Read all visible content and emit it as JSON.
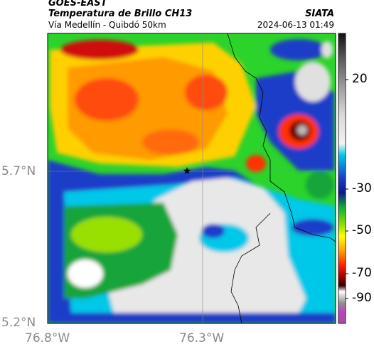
{
  "header": {
    "satellite": "GOES-EAST",
    "product": "Temperatura de Brillo CH13",
    "region": "Vía Medellín - Quibdó 50km",
    "agency": "SIATA",
    "datetime": "2024-06-13 01:49"
  },
  "axes": {
    "lat_labels": [
      "5.7°N",
      "5.2°N"
    ],
    "lon_labels": [
      "76.8°W",
      "76.3°W"
    ]
  },
  "colorbar": {
    "labels": [
      "20",
      "-30",
      "-50",
      "-70",
      "-90"
    ]
  },
  "marker": {
    "name": "star"
  }
}
